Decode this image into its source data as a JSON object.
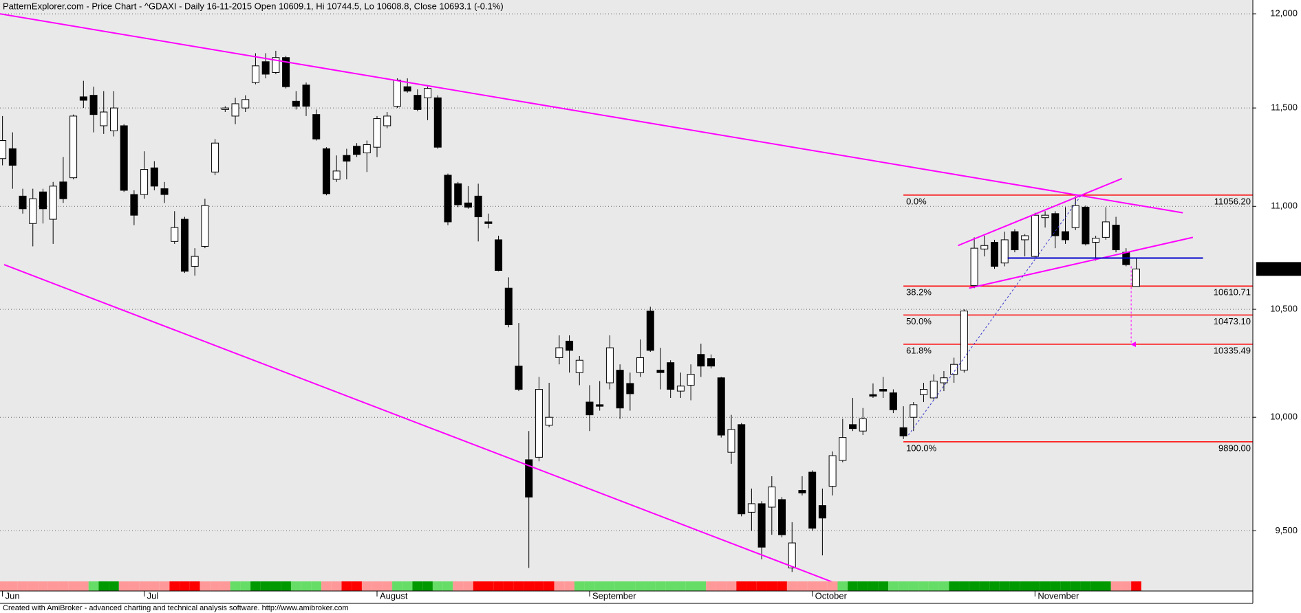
{
  "chart_data": {
    "type": "candlestick",
    "title": "PatternExplorer.com - Price Chart - ^GDAXI - Daily 16-11-2015 Open 10609.1, Hi 10744.5, Lo 10608.8, Close 10693.1 (-0.1%)",
    "footer": "Created with AmiBroker - advanced charting and technical analysis software. http://www.amibroker.com",
    "log_y": true,
    "grid": true,
    "up_color": "#ffffff",
    "down_color": "#000000",
    "ylim": [
      9245,
      12075
    ],
    "yticks": [
      {
        "value": 9500,
        "label": "9,500"
      },
      {
        "value": 10000,
        "label": "10,000"
      },
      {
        "value": 10500,
        "label": "10,500"
      },
      {
        "value": 11000,
        "label": "11,000"
      },
      {
        "value": 11500,
        "label": "11,500"
      },
      {
        "value": 12000,
        "label": "12,000"
      }
    ],
    "xticks": [
      {
        "value": 0,
        "label": "Jun"
      },
      {
        "value": 14,
        "label": "Jul"
      },
      {
        "value": 37,
        "label": "August"
      },
      {
        "value": 58,
        "label": "September"
      },
      {
        "value": 80,
        "label": "October"
      },
      {
        "value": 102,
        "label": "November"
      }
    ],
    "open": [
      11240,
      11290,
      11051,
      10915,
      11072,
      10936,
      11122,
      11143,
      11558,
      11566,
      11408,
      11382,
      11408,
      11059,
      11059,
      11193,
      11088,
      10827,
      10936,
      10706,
      10803,
      11172,
      11492,
      11458,
      11500,
      11633,
      11743,
      11686,
      11765,
      11535,
      11620,
      11466,
      11290,
      11135,
      11256,
      11303,
      11269,
      11298,
      11408,
      11509,
      11611,
      11566,
      11553,
      11553,
      11156,
      11113,
      11017,
      11051,
      10923,
      10835,
      10601,
      10234,
      9810,
      9821,
      9964,
      10273,
      10350,
      10204,
      10069,
      10057,
      10157,
      10215,
      10154,
      10204,
      10492,
      10215,
      10250,
      10119,
      10146,
      10288,
      10269,
      10180,
      9843,
      9967,
      9580,
      9617,
      9602,
      9635,
      9342,
      9675,
      9755,
      9609,
      9693,
      9807,
      9967,
      9938,
      10103,
      10127,
      10111,
      9953,
      10000,
      10103,
      10088,
      10157,
      10196,
      10215,
      10613,
      10790,
      10823,
      10722,
      10875,
      10835,
      10754,
      10944,
      10964,
      10875,
      10895,
      10996,
      10823,
      10847,
      10907,
      10774,
      10609.1
    ],
    "high": [
      11458,
      11374,
      11088,
      11088,
      11088,
      11122,
      11248,
      11466,
      11642,
      11611,
      11588,
      11588,
      11416,
      11080,
      11277,
      11227,
      11122,
      10976,
      10948,
      10794,
      11038,
      11340,
      11509,
      11553,
      11566,
      11788,
      11788,
      11801,
      11774,
      11588,
      11633,
      11492,
      11298,
      11256,
      11290,
      11319,
      11332,
      11458,
      11479,
      11655,
      11655,
      11597,
      11611,
      11566,
      11164,
      11122,
      11101,
      11113,
      10964,
      10855,
      10653,
      10435,
      9938,
      10184,
      10157,
      10377,
      10377,
      10281,
      10146,
      10165,
      10377,
      10242,
      10204,
      10358,
      10512,
      10319,
      10261,
      10204,
      10242,
      10338,
      10288,
      10184,
      10011,
      9974,
      9683,
      9628,
      9737,
      9646,
      9537,
      9737,
      9763,
      9683,
      9847,
      9993,
      10088,
      10042,
      10154,
      10184,
      10127,
      10050,
      10069,
      10157,
      10196,
      10211,
      10273,
      10500,
      10847,
      10855,
      10835,
      10875,
      10887,
      10863,
      10968,
      10976,
      10976,
      10996,
      11051,
      11004,
      10855,
      10996,
      10948,
      10794,
      10744.5
    ],
    "low": [
      11206,
      11088,
      10964,
      10803,
      10915,
      10815,
      11017,
      11135,
      11500,
      11374,
      11366,
      11353,
      11072,
      10907,
      11038,
      11080,
      11017,
      10815,
      10674,
      10661,
      10794,
      11156,
      11479,
      11416,
      11479,
      11624,
      11655,
      11677,
      11602,
      11492,
      11458,
      11332,
      11055,
      11122,
      11135,
      11248,
      11172,
      11248,
      11395,
      11500,
      11580,
      11483,
      11437,
      11290,
      10907,
      10996,
      10988,
      10827,
      10891,
      10682,
      10415,
      10119,
      9342,
      9803,
      9956,
      10242,
      10204,
      10146,
      9938,
      10030,
      10127,
      9993,
      10030,
      10184,
      10300,
      10127,
      10088,
      10088,
      10077,
      10184,
      10223,
      9909,
      9792,
      9562,
      9500,
      9378,
      9483,
      9472,
      9325,
      9653,
      9500,
      9395,
      9653,
      9799,
      9938,
      9920,
      10088,
      10088,
      10019,
      9902,
      9938,
      10069,
      10080,
      10119,
      10157,
      10204,
      10601,
      10754,
      10694,
      10706,
      10774,
      10754,
      10746,
      10895,
      10794,
      10815,
      10883,
      10807,
      10734,
      10835,
      10774,
      10706,
      10608.8
    ],
    "close": [
      11332,
      11206,
      10988,
      11038,
      10988,
      11101,
      11038,
      11458,
      11540,
      11466,
      11479,
      11500,
      11080,
      10956,
      11185,
      11101,
      11059,
      10895,
      10682,
      10754,
      11004,
      11319,
      11500,
      11522,
      11544,
      11721,
      11677,
      11765,
      11611,
      11509,
      11509,
      11340,
      11063,
      11177,
      11227,
      11261,
      11311,
      11445,
      11458,
      11646,
      11588,
      11492,
      11602,
      11298,
      10923,
      11008,
      10996,
      10948,
      10915,
      10686,
      10427,
      10127,
      9646,
      10127,
      10000,
      10319,
      10307,
      10261,
      10011,
      10050,
      10319,
      10042,
      10107,
      10273,
      10307,
      10204,
      10127,
      10142,
      10196,
      10234,
      10234,
      9920,
      9945,
      9573,
      9617,
      9430,
      9690,
      9483,
      9448,
      9664,
      9511,
      9555,
      9828,
      9909,
      9949,
      9993,
      10096,
      10119,
      10034,
      9916,
      10057,
      10127,
      10165,
      10180,
      10242,
      10492,
      10794,
      10807,
      10706,
      10835,
      10786,
      10855,
      10956,
      10956,
      10855,
      10835,
      11004,
      10815,
      10843,
      10923,
      10786,
      10714,
      10693.1
    ],
    "band_colors": [
      "#ff9999",
      "#ff9999",
      "#ff9999",
      "#ff9999",
      "#ff9999",
      "#ff9999",
      "#ff9999",
      "#ff9999",
      "#ff9999",
      "#66dd66",
      "#009900",
      "#009900",
      "#ff9999",
      "#ff9999",
      "#ff9999",
      "#ff9999",
      "#ff9999",
      "#ff0000",
      "#ff0000",
      "#ff0000",
      "#ff9999",
      "#ff9999",
      "#ff9999",
      "#66dd66",
      "#66dd66",
      "#009900",
      "#009900",
      "#009900",
      "#009900",
      "#66dd66",
      "#66dd66",
      "#66dd66",
      "#ff9999",
      "#ff9999",
      "#ff0000",
      "#ff0000",
      "#ff9999",
      "#ff9999",
      "#ff9999",
      "#66dd66",
      "#66dd66",
      "#009900",
      "#009900",
      "#66dd66",
      "#66dd66",
      "#ff9999",
      "#ff9999",
      "#ff0000",
      "#ff0000",
      "#ff0000",
      "#ff0000",
      "#ff0000",
      "#ff0000",
      "#ff0000",
      "#ff0000",
      "#ff9999",
      "#ff9999",
      "#66dd66",
      "#66dd66",
      "#66dd66",
      "#66dd66",
      "#66dd66",
      "#66dd66",
      "#66dd66",
      "#66dd66",
      "#66dd66",
      "#66dd66",
      "#66dd66",
      "#66dd66",
      "#66dd66",
      "#ff9999",
      "#ff9999",
      "#ff9999",
      "#ff0000",
      "#ff0000",
      "#ff0000",
      "#ff0000",
      "#ff0000",
      "#ff9999",
      "#ff9999",
      "#ff9999",
      "#ff9999",
      "#ff9999",
      "#66dd66",
      "#009900",
      "#009900",
      "#009900",
      "#009900",
      "#66dd66",
      "#66dd66",
      "#66dd66",
      "#66dd66",
      "#66dd66",
      "#66dd66",
      "#009900",
      "#009900",
      "#009900",
      "#009900",
      "#009900",
      "#009900",
      "#009900",
      "#009900",
      "#009900",
      "#009900",
      "#009900",
      "#009900",
      "#009900",
      "#009900",
      "#009900",
      "#009900",
      "#ff9999",
      "#ff9999",
      "#ff0000"
    ],
    "fib_levels": {
      "start_index": 89,
      "color": "#ff0000",
      "labels": [
        "0.0%",
        "38.2%",
        "50.0%",
        "61.8%",
        "100.0%"
      ],
      "values": [
        11056.2,
        10610.71,
        10473.1,
        10335.49,
        9890
      ],
      "value_labels": [
        "11056.20",
        "10610.71",
        "10473.10",
        "10335.49",
        "9890.00"
      ]
    },
    "lines": [
      {
        "x": [
          -0.25,
          116.6
        ],
        "y": [
          12000,
          10968
        ],
        "color": "#ff00ff",
        "dashed": false
      },
      {
        "x": [
          0.16,
          84.0
        ],
        "y": [
          10714,
          9250
        ],
        "color": "#ff00ff",
        "dashed": false
      },
      {
        "x": [
          94.4,
          110.6
        ],
        "y": [
          10807,
          11139
        ],
        "color": "#ff00ff",
        "dashed": false
      },
      {
        "x": [
          95.5,
          117.6
        ],
        "y": [
          10601,
          10847
        ],
        "color": "#ff00ff",
        "dashed": false
      },
      {
        "x": [
          99.3,
          118.6
        ],
        "y": [
          10746,
          10746
        ],
        "color": "#0000cc",
        "dashed": false
      },
      {
        "x": [
          89.5,
          106.5
        ],
        "y": [
          9920,
          11051
        ],
        "color": "#3333cc",
        "dashed": true
      },
      {
        "x": [
          111.5,
          111.5
        ],
        "y": [
          10706,
          10335
        ],
        "color": "#ff00ff",
        "dashed": true,
        "arrow": true
      }
    ],
    "last_price": {
      "value": 10693.1,
      "label": "10,693.1"
    }
  }
}
